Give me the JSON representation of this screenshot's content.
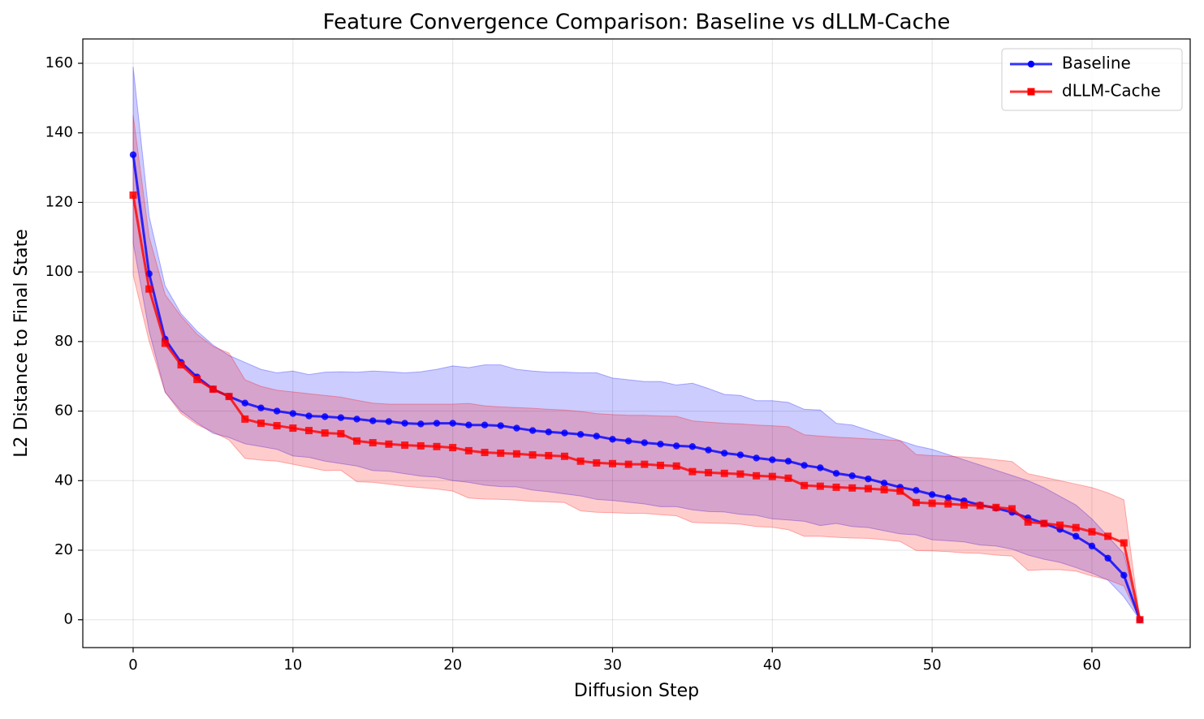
{
  "chart_data": {
    "type": "line",
    "title": "Feature Convergence Comparison: Baseline vs dLLM-Cache",
    "xlabel": "Diffusion Step",
    "ylabel": "L2 Distance to Final State",
    "x": [
      0,
      1,
      2,
      3,
      4,
      5,
      6,
      7,
      8,
      9,
      10,
      11,
      12,
      13,
      14,
      15,
      16,
      17,
      18,
      19,
      20,
      21,
      22,
      23,
      24,
      25,
      26,
      27,
      28,
      29,
      30,
      31,
      32,
      33,
      34,
      35,
      36,
      37,
      38,
      39,
      40,
      41,
      42,
      43,
      44,
      45,
      46,
      47,
      48,
      49,
      50,
      51,
      52,
      53,
      54,
      55,
      56,
      57,
      58,
      59,
      60,
      61,
      62,
      63
    ],
    "series": [
      {
        "name": "Baseline",
        "color": "#0000ff",
        "marker": "circle",
        "values": [
          133.7,
          99.5,
          80.7,
          74,
          69.8,
          66.3,
          64.2,
          62.3,
          60.9,
          60,
          59.3,
          58.6,
          58.4,
          58.1,
          57.7,
          57.2,
          57,
          56.5,
          56.3,
          56.5,
          56.5,
          56,
          56,
          55.8,
          55.1,
          54.4,
          54,
          53.7,
          53.3,
          52.8,
          51.9,
          51.4,
          50.9,
          50.5,
          50,
          49.8,
          48.8,
          47.9,
          47.4,
          46.5,
          46,
          45.6,
          44.4,
          43.7,
          42.1,
          41.4,
          40.5,
          39.3,
          38.1,
          37.2,
          36,
          35.1,
          34.2,
          33,
          32.1,
          30.9,
          29.3,
          27.7,
          26,
          24,
          21.2,
          17.7,
          12.8,
          0
        ],
        "error": [
          25.3,
          16.5,
          15.3,
          14,
          13.2,
          12.7,
          11.8,
          11.7,
          11.1,
          11,
          12.2,
          11.9,
          12.8,
          13.2,
          13.5,
          14.3,
          14.3,
          14.5,
          15,
          15.5,
          16.5,
          16.5,
          17.3,
          17.5,
          16.9,
          17.1,
          17.2,
          17.5,
          17.7,
          18.2,
          17.6,
          17.6,
          17.6,
          18,
          17.5,
          18.2,
          17.7,
          16.9,
          17.1,
          16.5,
          17,
          16.9,
          16.1,
          16.6,
          14.4,
          14.6,
          14,
          13.7,
          13.4,
          12.8,
          13,
          12.4,
          11.8,
          11.5,
          10.9,
          10.6,
          10.7,
          10.3,
          9.5,
          9,
          7.8,
          6.3,
          6.2,
          0
        ]
      },
      {
        "name": "dLLM-Cache",
        "color": "#ff0000",
        "marker": "square",
        "values": [
          122.1,
          95.1,
          79.5,
          73.3,
          69.1,
          66.3,
          64.2,
          57.7,
          56.5,
          55.8,
          55.1,
          54.4,
          53.7,
          53.5,
          51.4,
          50.9,
          50.5,
          50.2,
          50,
          49.8,
          49.5,
          48.6,
          48.1,
          47.9,
          47.7,
          47.4,
          47.2,
          47,
          45.6,
          45.1,
          44.9,
          44.7,
          44.7,
          44.4,
          44.2,
          42.6,
          42.3,
          42.1,
          41.9,
          41.4,
          41.2,
          40.7,
          38.6,
          38.4,
          38.1,
          37.9,
          37.7,
          37.4,
          37,
          33.7,
          33.5,
          33.3,
          33,
          32.8,
          32.3,
          31.9,
          28.1,
          27.7,
          27.2,
          26.5,
          25.3,
          24,
          22.1,
          0
        ],
        "error": [
          23,
          15,
          14,
          14,
          13,
          12.3,
          12.5,
          11.3,
          10.6,
          10.2,
          10.4,
          10.6,
          10.8,
          10.5,
          11.7,
          11.4,
          11.5,
          11.8,
          12,
          12.2,
          12.5,
          13.6,
          13.4,
          13.3,
          13.3,
          13.4,
          13.3,
          13.3,
          14.3,
          14.2,
          14.1,
          14.1,
          14.1,
          14.2,
          14.3,
          14.6,
          14.5,
          14.4,
          14.4,
          14.6,
          14.6,
          14.8,
          14.6,
          14.4,
          14.4,
          14.4,
          14.3,
          14.4,
          14.5,
          13.8,
          13.7,
          13.7,
          13.8,
          13.7,
          13.7,
          13.6,
          13.9,
          13.3,
          12.8,
          12.5,
          12.7,
          12.5,
          12.4,
          0
        ]
      }
    ],
    "xlim": [
      -3.15,
      66.15
    ],
    "xticks": [
      0,
      10,
      20,
      30,
      40,
      50,
      60
    ],
    "ylim": [
      -8,
      167
    ],
    "yticks": [
      0,
      20,
      40,
      60,
      80,
      100,
      120,
      140,
      160
    ],
    "grid": true,
    "legend": "upper right"
  }
}
